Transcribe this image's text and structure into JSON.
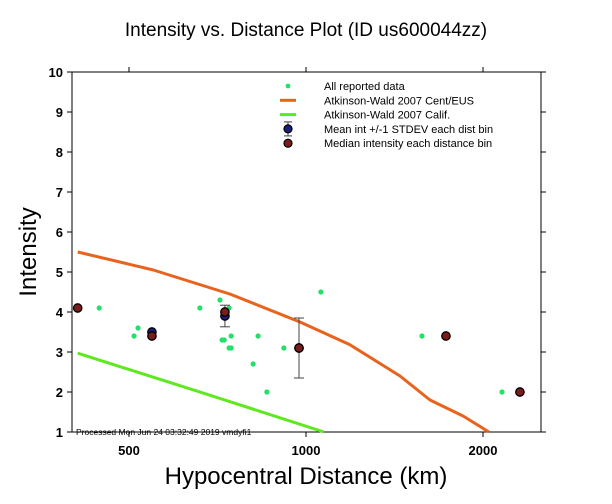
{
  "chart_data": {
    "type": "scatter",
    "title": "Intensity vs. Distance Plot (ID us600044zz)",
    "xlabel": "Hypocentral Distance (km)",
    "ylabel": "Intensity",
    "xscale": "log",
    "xlim": [
      400,
      2510
    ],
    "ylim": [
      1,
      10
    ],
    "xticks": [
      500,
      1000,
      2000
    ],
    "xtick_labels": [
      "500",
      "1000",
      "2000"
    ],
    "yticks": [
      1,
      2,
      3,
      4,
      5,
      6,
      7,
      8,
      9,
      10
    ],
    "ytick_labels": [
      "1",
      "2",
      "3",
      "4",
      "5",
      "6",
      "7",
      "8",
      "9",
      "10"
    ],
    "grid": false,
    "legend_position": "top-right",
    "annotation": "Processed Mon Jun 24 03:32:49 2019 vmdyfi1",
    "colors": {
      "reported": "#22e06a",
      "cent_eus": "#e8641e",
      "calif": "#5ee81e",
      "mean": "#1c1c7a",
      "median": "#7a1c1c",
      "errorbar": "#444444",
      "axis": "#000000"
    },
    "series": [
      {
        "name": "All reported data",
        "kind": "points",
        "points": [
          [
            445,
            4.1
          ],
          [
            510,
            3.4
          ],
          [
            518,
            3.6
          ],
          [
            660,
            4.1
          ],
          [
            714,
            4.3
          ],
          [
            740,
            4.1
          ],
          [
            746,
            3.4
          ],
          [
            720,
            3.3
          ],
          [
            726,
            3.3
          ],
          [
            740,
            3.1
          ],
          [
            746,
            3.1
          ],
          [
            829,
            3.4
          ],
          [
            813,
            2.7
          ],
          [
            858,
            2.0
          ],
          [
            917,
            3.1
          ],
          [
            1060,
            4.5
          ],
          [
            1575,
            3.4
          ],
          [
            2155,
            2.0
          ]
        ]
      },
      {
        "name": "Atkinson-Wald 2007 Cent/EUS",
        "kind": "line",
        "points": [
          [
            409,
            5.5
          ],
          [
            550,
            5.05
          ],
          [
            742,
            4.45
          ],
          [
            977,
            3.75
          ],
          [
            1188,
            3.18
          ],
          [
            1445,
            2.4
          ],
          [
            1625,
            1.8
          ],
          [
            1850,
            1.4
          ],
          [
            2047,
            1.0
          ]
        ]
      },
      {
        "name": "Atkinson-Wald 2007 Calif.",
        "kind": "line",
        "points": [
          [
            409,
            2.97
          ],
          [
            660,
            2.0
          ],
          [
            1073,
            1.0
          ]
        ]
      },
      {
        "name": "Mean int +/-1 STDEV each dist bin",
        "kind": "errorbar",
        "points": [
          {
            "x": 547,
            "y": 3.5,
            "sd": 0.0
          },
          {
            "x": 728,
            "y": 3.9,
            "sd": 0.27
          },
          {
            "x": 973,
            "y": 3.1,
            "sd": 0.75
          }
        ]
      },
      {
        "name": "Median intensity each distance bin",
        "kind": "points",
        "points": [
          [
            409,
            4.1
          ],
          [
            547,
            3.4
          ],
          [
            728,
            4.0
          ],
          [
            973,
            3.1
          ],
          [
            1730,
            3.4
          ],
          [
            2311,
            2.0
          ]
        ]
      }
    ],
    "legend": [
      {
        "label": "All reported data",
        "symbol": "dot"
      },
      {
        "label": "Atkinson-Wald 2007 Cent/EUS",
        "symbol": "line-orange"
      },
      {
        "label": "Atkinson-Wald 2007 Calif.",
        "symbol": "line-green"
      },
      {
        "label": "Mean int +/-1 STDEV each dist bin",
        "symbol": "mean-errorbar"
      },
      {
        "label": "Median intensity each distance bin",
        "symbol": "median"
      }
    ]
  }
}
